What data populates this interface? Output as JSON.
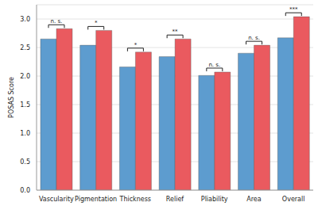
{
  "chart_data": {
    "type": "bar",
    "y_label": "POSAS Score",
    "categories": [
      "Vascularity",
      "Pigmentation",
      "Thickness",
      "Relief",
      "Pliability",
      "Area",
      "Overall"
    ],
    "series": [
      {
        "color": "#5d9ccf",
        "values": [
          2.65,
          2.54,
          2.16,
          2.34,
          2.01,
          2.4,
          2.67
        ]
      },
      {
        "color": "#ea5a5f",
        "values": [
          2.83,
          2.8,
          2.42,
          2.65,
          2.07,
          2.54,
          3.04
        ]
      }
    ],
    "significance": [
      "n. s.",
      "*",
      "*",
      "**",
      "n. s.",
      "n. s.",
      "***"
    ],
    "ylim": [
      0,
      3.25
    ],
    "yticks": [
      {
        "value": 0,
        "label": "0.0"
      },
      {
        "value": 0.5,
        "label": "0.5"
      },
      {
        "value": 1,
        "label": "1.0"
      },
      {
        "value": 1.5,
        "label": "1.5"
      },
      {
        "value": 2,
        "label": "2.0"
      },
      {
        "value": 2.5,
        "label": "2.5"
      },
      {
        "value": 3,
        "label": "3.0"
      }
    ],
    "grid": true
  }
}
